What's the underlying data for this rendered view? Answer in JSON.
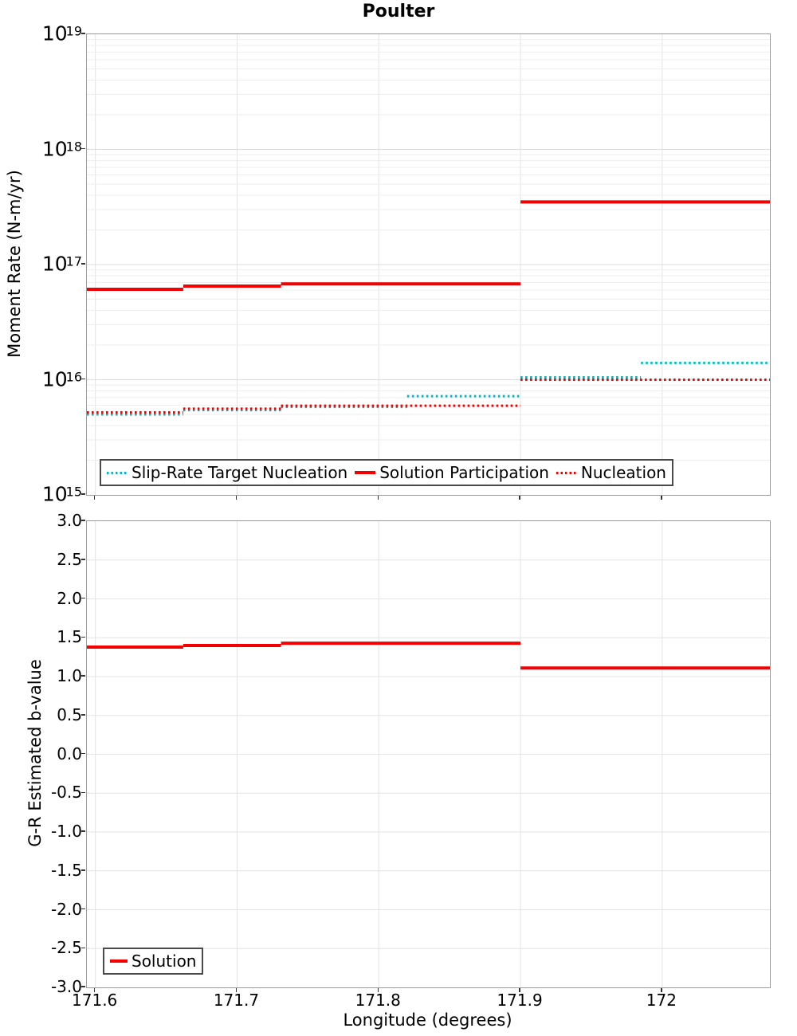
{
  "title": "Poulter",
  "chart_data": [
    {
      "type": "line",
      "title": "Poulter",
      "ylabel": "Moment Rate (N-m/yr)",
      "xlabel": "Longitude (degrees)",
      "y_scale": "log",
      "ylim": [
        1000000000000000.0,
        1e+19
      ],
      "xlim": [
        171.594,
        172.076
      ],
      "x_ticks": [
        171.6,
        171.7,
        171.8,
        171.9,
        172
      ],
      "y_tick_exponents": [
        19,
        18,
        17,
        16,
        15
      ],
      "grid": true,
      "legend_position": "lower left",
      "series": [
        {
          "name": "Slip-Rate Target Nucleation",
          "color": "#00b9c0",
          "style": "dotted",
          "width": 3,
          "segments": [
            [
              171.594,
              171.662,
              5000000000000000.0
            ],
            [
              171.662,
              171.731,
              5450000000000000.0
            ],
            [
              171.731,
              171.82,
              5800000000000000.0
            ],
            [
              171.82,
              171.9,
              7200000000000000.0
            ],
            [
              171.9,
              171.985,
              1.05e+16
            ],
            [
              171.985,
              172.076,
              1.4e+16
            ]
          ]
        },
        {
          "name": "Solution Participation",
          "color": "#f40000",
          "style": "solid",
          "width": 4,
          "segments": [
            [
              171.594,
              171.662,
              6.1e+16
            ],
            [
              171.662,
              171.731,
              6.5e+16
            ],
            [
              171.731,
              171.9,
              6.8e+16
            ],
            [
              171.9,
              172.076,
              3.5e+17
            ]
          ]
        },
        {
          "name": "Nucleation",
          "color": "#f40000",
          "style": "dotted",
          "width": 3,
          "segments": [
            [
              171.594,
              171.662,
              5200000000000000.0
            ],
            [
              171.662,
              171.731,
              5600000000000000.0
            ],
            [
              171.731,
              171.9,
              5950000000000000.0
            ],
            [
              171.9,
              172.076,
              1e+16
            ]
          ]
        }
      ]
    },
    {
      "type": "line",
      "ylabel": "G-R Estimated b-value",
      "xlabel": "Longitude (degrees)",
      "y_scale": "linear",
      "ylim": [
        -3.0,
        3.0
      ],
      "y_tick_step": 0.5,
      "xlim": [
        171.594,
        172.076
      ],
      "x_ticks": [
        171.6,
        171.7,
        171.8,
        171.9,
        172
      ],
      "grid": true,
      "legend_position": "lower left",
      "series": [
        {
          "name": "Solution",
          "color": "#f40000",
          "style": "solid",
          "width": 4,
          "segments": [
            [
              171.594,
              171.662,
              1.38
            ],
            [
              171.662,
              171.731,
              1.4
            ],
            [
              171.731,
              171.9,
              1.43
            ],
            [
              171.9,
              172.076,
              1.11
            ]
          ]
        }
      ]
    }
  ]
}
